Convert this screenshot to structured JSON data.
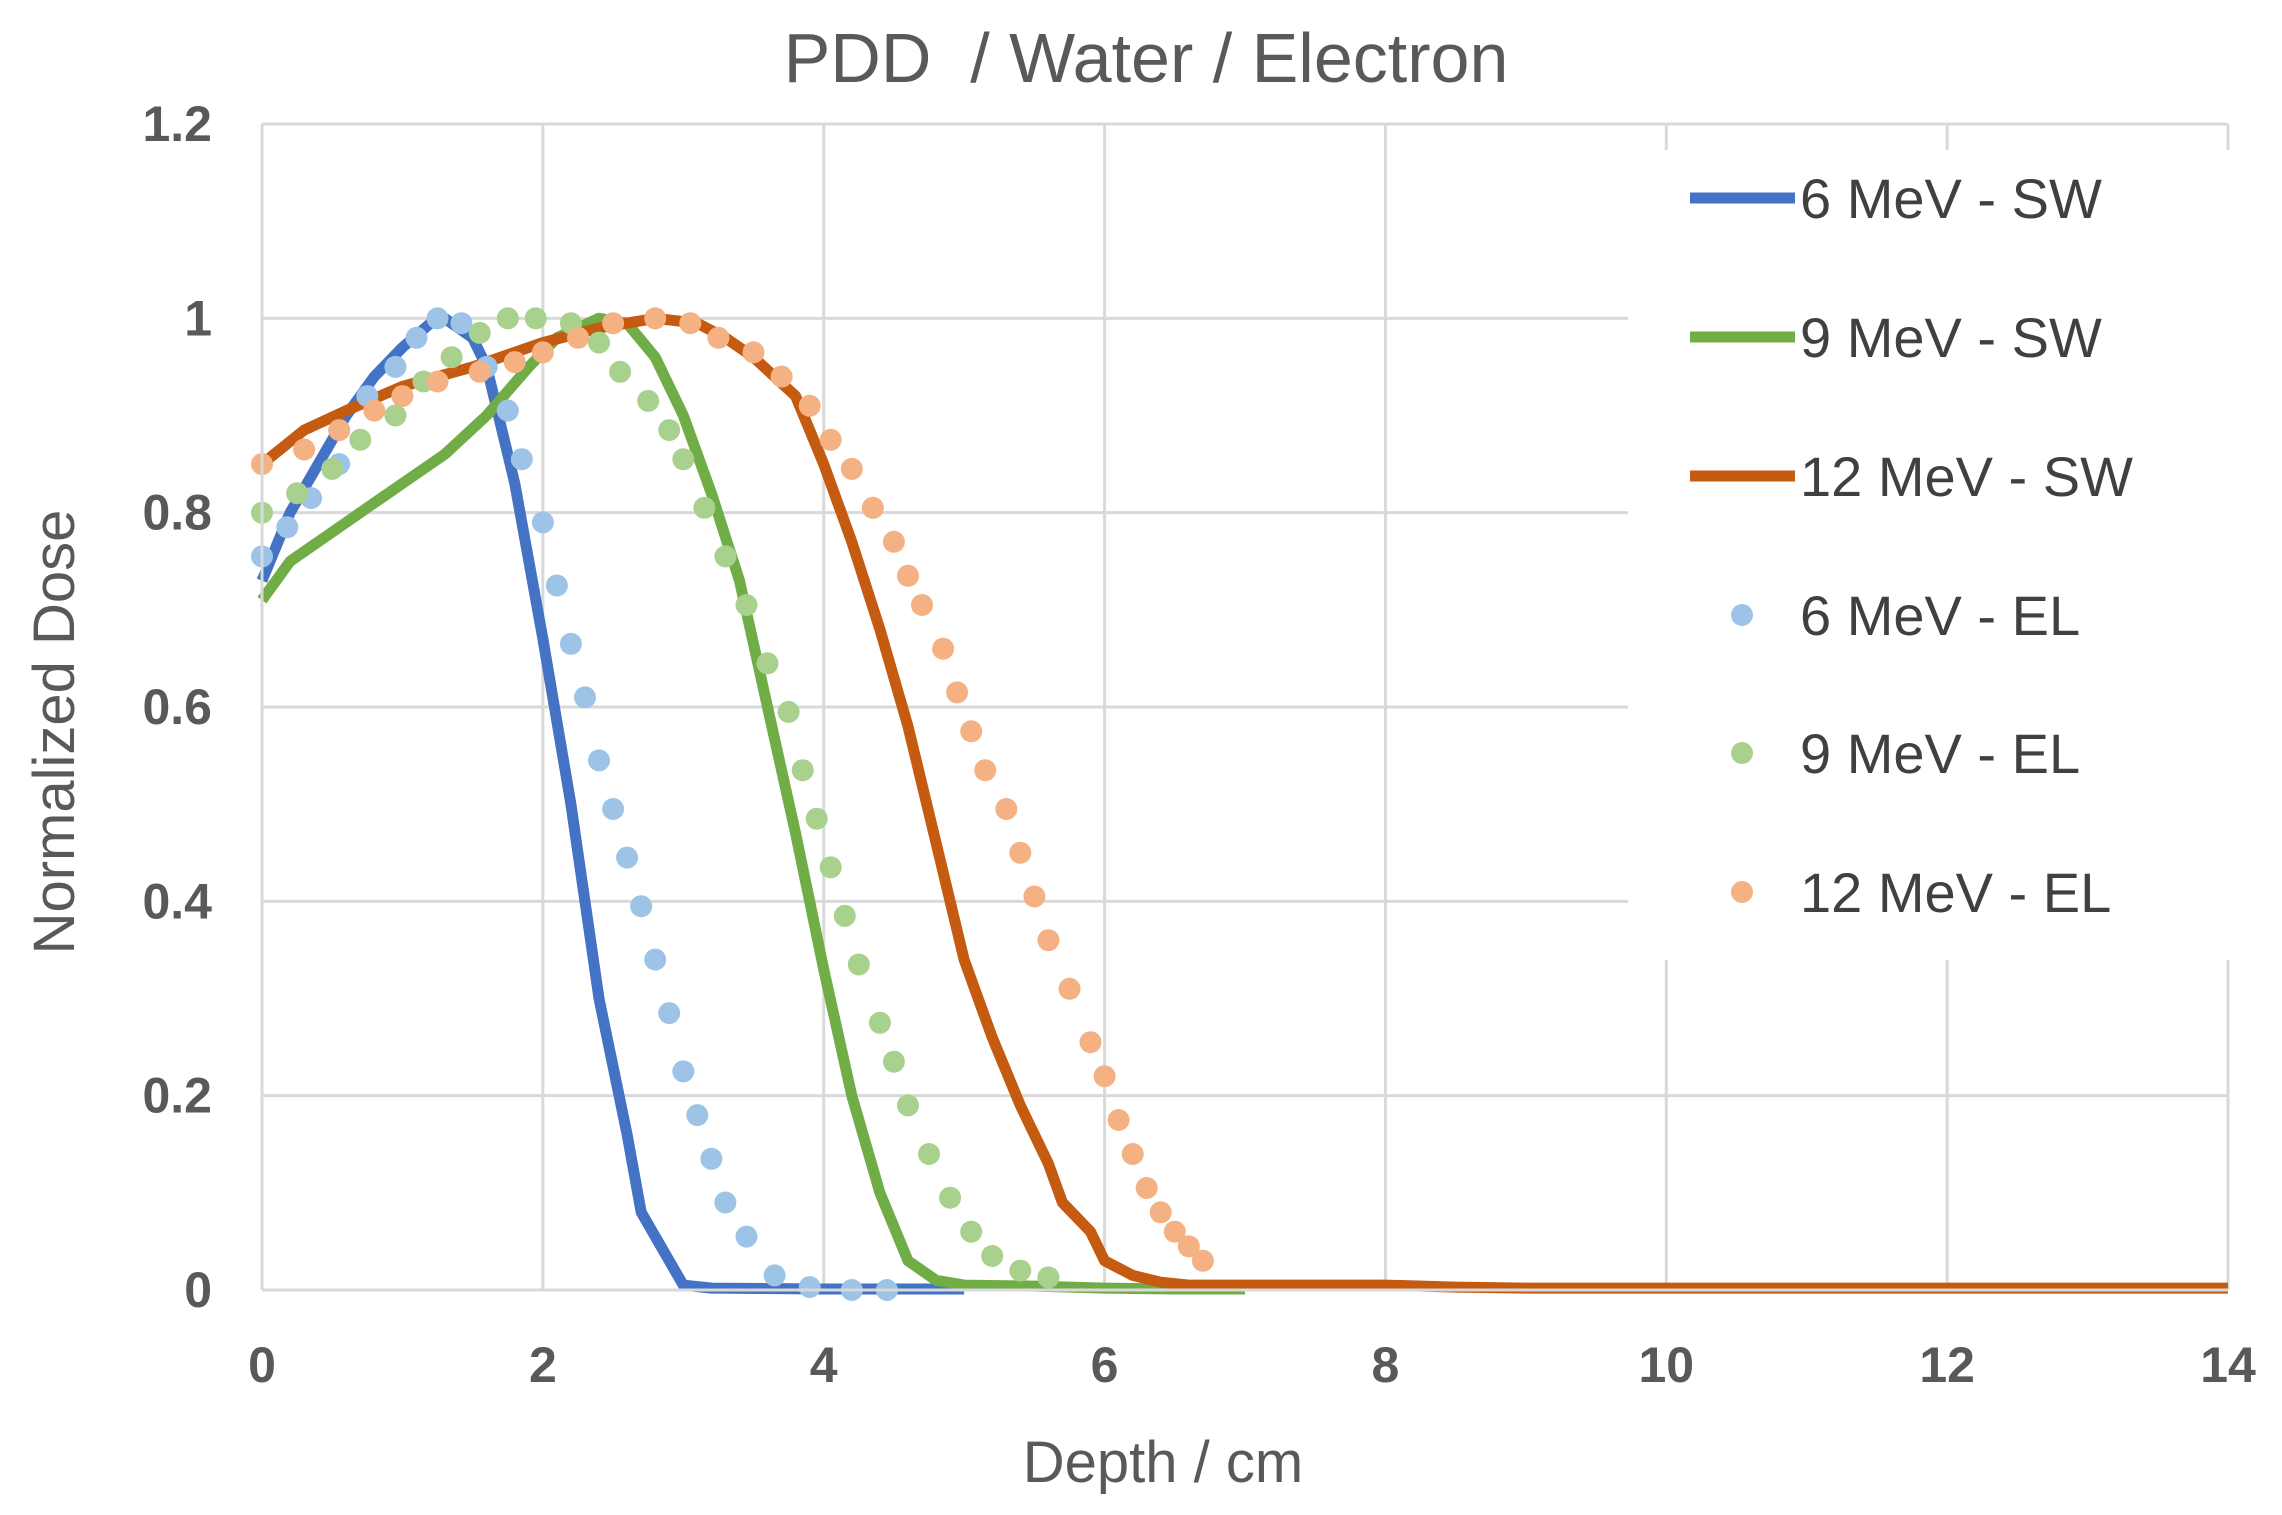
{
  "chart_data": {
    "type": "line",
    "title": "PDD  / Water / Electron",
    "xlabel": "Depth / cm",
    "ylabel": "Normalized Dose",
    "xlim": [
      0,
      14
    ],
    "ylim": [
      0,
      1.2
    ],
    "xticks": [
      0,
      2,
      4,
      6,
      8,
      10,
      12,
      14
    ],
    "xtick_labels": [
      "0",
      "2",
      "4",
      "6",
      "8",
      "10",
      "12",
      "14"
    ],
    "yticks": [
      0,
      0.2,
      0.4,
      0.6,
      0.8,
      1,
      1.2
    ],
    "ytick_labels": [
      "0",
      "0.2",
      "0.4",
      "0.6",
      "0.8",
      "1",
      "1.2"
    ],
    "grid": true,
    "legend_position": "right",
    "series": [
      {
        "name": "6 MeV - SW",
        "style": "line",
        "color": "#4472C4",
        "points": [
          [
            0,
            0.73
          ],
          [
            0.2,
            0.8
          ],
          [
            0.4,
            0.85
          ],
          [
            0.6,
            0.9
          ],
          [
            0.8,
            0.94
          ],
          [
            1.0,
            0.97
          ],
          [
            1.2,
            0.995
          ],
          [
            1.3,
            1.0
          ],
          [
            1.5,
            0.98
          ],
          [
            1.6,
            0.95
          ],
          [
            1.8,
            0.83
          ],
          [
            2.0,
            0.67
          ],
          [
            2.2,
            0.5
          ],
          [
            2.4,
            0.3
          ],
          [
            2.6,
            0.16
          ],
          [
            2.7,
            0.08
          ],
          [
            2.9,
            0.03
          ],
          [
            3.0,
            0.005
          ],
          [
            3.2,
            0.002
          ],
          [
            4.0,
            0.001
          ],
          [
            5.0,
            0.001
          ]
        ]
      },
      {
        "name": "9 MeV - SW",
        "style": "line",
        "color": "#70AD47",
        "points": [
          [
            0,
            0.71
          ],
          [
            0.2,
            0.75
          ],
          [
            0.5,
            0.78
          ],
          [
            0.8,
            0.81
          ],
          [
            1.0,
            0.83
          ],
          [
            1.3,
            0.86
          ],
          [
            1.6,
            0.9
          ],
          [
            1.9,
            0.95
          ],
          [
            2.1,
            0.98
          ],
          [
            2.4,
            1.0
          ],
          [
            2.6,
            0.995
          ],
          [
            2.8,
            0.96
          ],
          [
            3.0,
            0.9
          ],
          [
            3.2,
            0.82
          ],
          [
            3.4,
            0.73
          ],
          [
            3.6,
            0.6
          ],
          [
            3.8,
            0.47
          ],
          [
            4.0,
            0.33
          ],
          [
            4.2,
            0.2
          ],
          [
            4.4,
            0.1
          ],
          [
            4.6,
            0.03
          ],
          [
            4.8,
            0.01
          ],
          [
            5.0,
            0.005
          ],
          [
            5.5,
            0.004
          ],
          [
            6.0,
            0.002
          ],
          [
            6.5,
            0.001
          ],
          [
            7.0,
            0.001
          ]
        ]
      },
      {
        "name": "12 MeV - SW",
        "style": "line",
        "color": "#C55A11",
        "points": [
          [
            0,
            0.85
          ],
          [
            0.3,
            0.885
          ],
          [
            0.6,
            0.905
          ],
          [
            1.0,
            0.93
          ],
          [
            1.5,
            0.95
          ],
          [
            2.0,
            0.975
          ],
          [
            2.4,
            0.99
          ],
          [
            2.8,
            1.0
          ],
          [
            3.1,
            0.995
          ],
          [
            3.3,
            0.98
          ],
          [
            3.5,
            0.96
          ],
          [
            3.8,
            0.92
          ],
          [
            4.0,
            0.85
          ],
          [
            4.2,
            0.77
          ],
          [
            4.4,
            0.68
          ],
          [
            4.6,
            0.58
          ],
          [
            4.8,
            0.46
          ],
          [
            5.0,
            0.34
          ],
          [
            5.2,
            0.26
          ],
          [
            5.4,
            0.19
          ],
          [
            5.6,
            0.13
          ],
          [
            5.7,
            0.09
          ],
          [
            5.9,
            0.06
          ],
          [
            6.0,
            0.03
          ],
          [
            6.2,
            0.015
          ],
          [
            6.4,
            0.008
          ],
          [
            6.6,
            0.005
          ],
          [
            7.0,
            0.005
          ],
          [
            8.0,
            0.005
          ],
          [
            8.5,
            0.003
          ],
          [
            9.0,
            0.002
          ],
          [
            10.0,
            0.002
          ],
          [
            12.0,
            0.002
          ],
          [
            14.0,
            0.002
          ]
        ]
      },
      {
        "name": "6 MeV - EL",
        "style": "dots",
        "color": "#9DC3E6",
        "points": [
          [
            0,
            0.755
          ],
          [
            0.18,
            0.785
          ],
          [
            0.35,
            0.815
          ],
          [
            0.55,
            0.85
          ],
          [
            0.75,
            0.92
          ],
          [
            0.95,
            0.95
          ],
          [
            1.1,
            0.98
          ],
          [
            1.25,
            1.0
          ],
          [
            1.42,
            0.995
          ],
          [
            1.6,
            0.95
          ],
          [
            1.75,
            0.905
          ],
          [
            1.85,
            0.855
          ],
          [
            2.0,
            0.79
          ],
          [
            2.1,
            0.725
          ],
          [
            2.2,
            0.665
          ],
          [
            2.3,
            0.61
          ],
          [
            2.4,
            0.545
          ],
          [
            2.5,
            0.495
          ],
          [
            2.6,
            0.445
          ],
          [
            2.7,
            0.395
          ],
          [
            2.8,
            0.34
          ],
          [
            2.9,
            0.285
          ],
          [
            3.0,
            0.225
          ],
          [
            3.1,
            0.18
          ],
          [
            3.2,
            0.135
          ],
          [
            3.3,
            0.09
          ],
          [
            3.45,
            0.055
          ],
          [
            3.65,
            0.015
          ],
          [
            3.9,
            0.003
          ],
          [
            4.2,
            0.0
          ],
          [
            4.45,
            0.0
          ]
        ]
      },
      {
        "name": "9 MeV - EL",
        "style": "dots",
        "color": "#A9D18E",
        "points": [
          [
            0,
            0.8
          ],
          [
            0.25,
            0.82
          ],
          [
            0.5,
            0.845
          ],
          [
            0.7,
            0.875
          ],
          [
            0.95,
            0.9
          ],
          [
            1.15,
            0.935
          ],
          [
            1.35,
            0.96
          ],
          [
            1.55,
            0.985
          ],
          [
            1.75,
            1.0
          ],
          [
            1.95,
            1.0
          ],
          [
            2.2,
            0.995
          ],
          [
            2.4,
            0.975
          ],
          [
            2.55,
            0.945
          ],
          [
            2.75,
            0.915
          ],
          [
            2.9,
            0.885
          ],
          [
            3.0,
            0.855
          ],
          [
            3.15,
            0.805
          ],
          [
            3.3,
            0.755
          ],
          [
            3.45,
            0.705
          ],
          [
            3.6,
            0.645
          ],
          [
            3.75,
            0.595
          ],
          [
            3.85,
            0.535
          ],
          [
            3.95,
            0.485
          ],
          [
            4.05,
            0.435
          ],
          [
            4.15,
            0.385
          ],
          [
            4.25,
            0.335
          ],
          [
            4.4,
            0.275
          ],
          [
            4.5,
            0.235
          ],
          [
            4.6,
            0.19
          ],
          [
            4.75,
            0.14
          ],
          [
            4.9,
            0.095
          ],
          [
            5.05,
            0.06
          ],
          [
            5.2,
            0.035
          ],
          [
            5.4,
            0.02
          ],
          [
            5.6,
            0.013
          ]
        ]
      },
      {
        "name": "12 MeV - EL",
        "style": "dots",
        "color": "#F4B183",
        "points": [
          [
            0,
            0.85
          ],
          [
            0.3,
            0.865
          ],
          [
            0.55,
            0.885
          ],
          [
            0.8,
            0.905
          ],
          [
            1.0,
            0.92
          ],
          [
            1.25,
            0.935
          ],
          [
            1.55,
            0.945
          ],
          [
            1.8,
            0.955
          ],
          [
            2.0,
            0.965
          ],
          [
            2.25,
            0.98
          ],
          [
            2.5,
            0.995
          ],
          [
            2.8,
            1.0
          ],
          [
            3.05,
            0.995
          ],
          [
            3.25,
            0.98
          ],
          [
            3.5,
            0.965
          ],
          [
            3.7,
            0.94
          ],
          [
            3.9,
            0.91
          ],
          [
            4.05,
            0.875
          ],
          [
            4.2,
            0.845
          ],
          [
            4.35,
            0.805
          ],
          [
            4.5,
            0.77
          ],
          [
            4.6,
            0.735
          ],
          [
            4.7,
            0.705
          ],
          [
            4.85,
            0.66
          ],
          [
            4.95,
            0.615
          ],
          [
            5.05,
            0.575
          ],
          [
            5.15,
            0.535
          ],
          [
            5.3,
            0.495
          ],
          [
            5.4,
            0.45
          ],
          [
            5.5,
            0.405
          ],
          [
            5.6,
            0.36
          ],
          [
            5.75,
            0.31
          ],
          [
            5.9,
            0.255
          ],
          [
            6.0,
            0.22
          ],
          [
            6.1,
            0.175
          ],
          [
            6.2,
            0.14
          ],
          [
            6.3,
            0.105
          ],
          [
            6.4,
            0.08
          ],
          [
            6.5,
            0.06
          ],
          [
            6.6,
            0.045
          ],
          [
            6.7,
            0.03
          ]
        ]
      }
    ]
  }
}
